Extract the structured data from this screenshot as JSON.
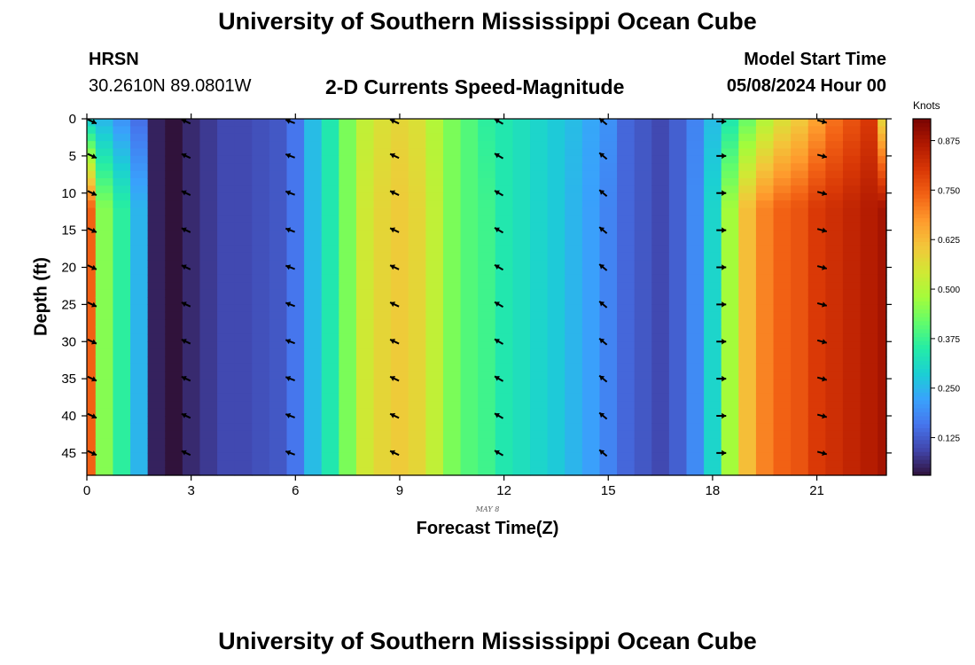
{
  "header": {
    "title": "University of Southern Mississippi Ocean Cube",
    "station": "HRSN",
    "coords": "30.2610N  89.0801W",
    "subtitle": "2-D Currents Speed-Magnitude",
    "model_start_label": "Model Start Time",
    "model_start_value": "05/08/2024 Hour 00"
  },
  "footer": {
    "title": "University of Southern Mississippi Ocean Cube"
  },
  "chart_data": {
    "type": "heatmap",
    "title": "2-D Currents Speed-Magnitude",
    "xlabel": "Forecast Time(Z)",
    "ylabel": "Depth (ft)",
    "date_label": "MAY 8",
    "colorbar_label": "Knots",
    "xlim": [
      0,
      23.0
    ],
    "ylim": [
      0,
      48
    ],
    "x_ticks": [
      0,
      3,
      6,
      9,
      12,
      15,
      18,
      21
    ],
    "y_ticks": [
      0,
      5,
      10,
      15,
      20,
      25,
      30,
      35,
      40,
      45
    ],
    "colorbar_ticks": [
      "0.125",
      "0.250",
      "0.375",
      "0.500",
      "0.625",
      "0.750",
      "0.875"
    ],
    "colorbar_range": [
      0.03,
      0.93
    ],
    "colormap": [
      "#30123b",
      "#4145ab",
      "#4675ed",
      "#39a2fc",
      "#1bcfd4",
      "#24eca6",
      "#61fc6c",
      "#a4fc3b",
      "#d1e834",
      "#f3c63a",
      "#fe9b2d",
      "#f36315",
      "#d93806",
      "#b11901",
      "#7a0402"
    ],
    "hours": [
      0.0,
      0.5,
      1.0,
      1.5,
      2.0,
      2.5,
      3.0,
      3.5,
      4.0,
      4.5,
      5.0,
      5.5,
      6.0,
      6.5,
      7.0,
      7.5,
      8.0,
      8.5,
      9.0,
      9.5,
      10.0,
      10.5,
      11.0,
      11.5,
      12.0,
      12.5,
      13.0,
      13.5,
      14.0,
      14.5,
      15.0,
      15.5,
      16.0,
      16.5,
      17.0,
      17.5,
      18.0,
      18.5,
      19.0,
      19.5,
      20.0,
      20.5,
      21.0,
      21.5,
      22.0,
      22.5,
      23.0
    ],
    "surface_speed": [
      0.28,
      0.25,
      0.2,
      0.15,
      0.05,
      0.03,
      0.06,
      0.08,
      0.1,
      0.1,
      0.11,
      0.12,
      0.16,
      0.26,
      0.34,
      0.44,
      0.52,
      0.56,
      0.58,
      0.56,
      0.5,
      0.44,
      0.4,
      0.36,
      0.34,
      0.32,
      0.3,
      0.28,
      0.26,
      0.23,
      0.2,
      0.14,
      0.12,
      0.1,
      0.13,
      0.18,
      0.26,
      0.34,
      0.42,
      0.5,
      0.56,
      0.6,
      0.66,
      0.72,
      0.76,
      0.8,
      0.58
    ],
    "depth_speed": [
      0.74,
      0.45,
      0.36,
      0.25,
      0.05,
      0.03,
      0.06,
      0.08,
      0.1,
      0.1,
      0.11,
      0.12,
      0.16,
      0.26,
      0.34,
      0.44,
      0.54,
      0.58,
      0.6,
      0.58,
      0.52,
      0.44,
      0.4,
      0.38,
      0.34,
      0.32,
      0.3,
      0.28,
      0.25,
      0.22,
      0.18,
      0.14,
      0.12,
      0.1,
      0.13,
      0.19,
      0.3,
      0.48,
      0.62,
      0.7,
      0.74,
      0.76,
      0.8,
      0.82,
      0.84,
      0.86,
      0.88
    ],
    "arrows": {
      "hours": [
        0.1,
        2.8,
        5.8,
        8.8,
        11.8,
        14.8,
        18.2,
        21.1
      ],
      "depths": [
        0,
        5,
        10,
        15,
        20,
        25,
        30,
        35,
        40,
        45
      ],
      "direction_deg": [
        25,
        205,
        200,
        205,
        210,
        220,
        0,
        15
      ]
    }
  }
}
